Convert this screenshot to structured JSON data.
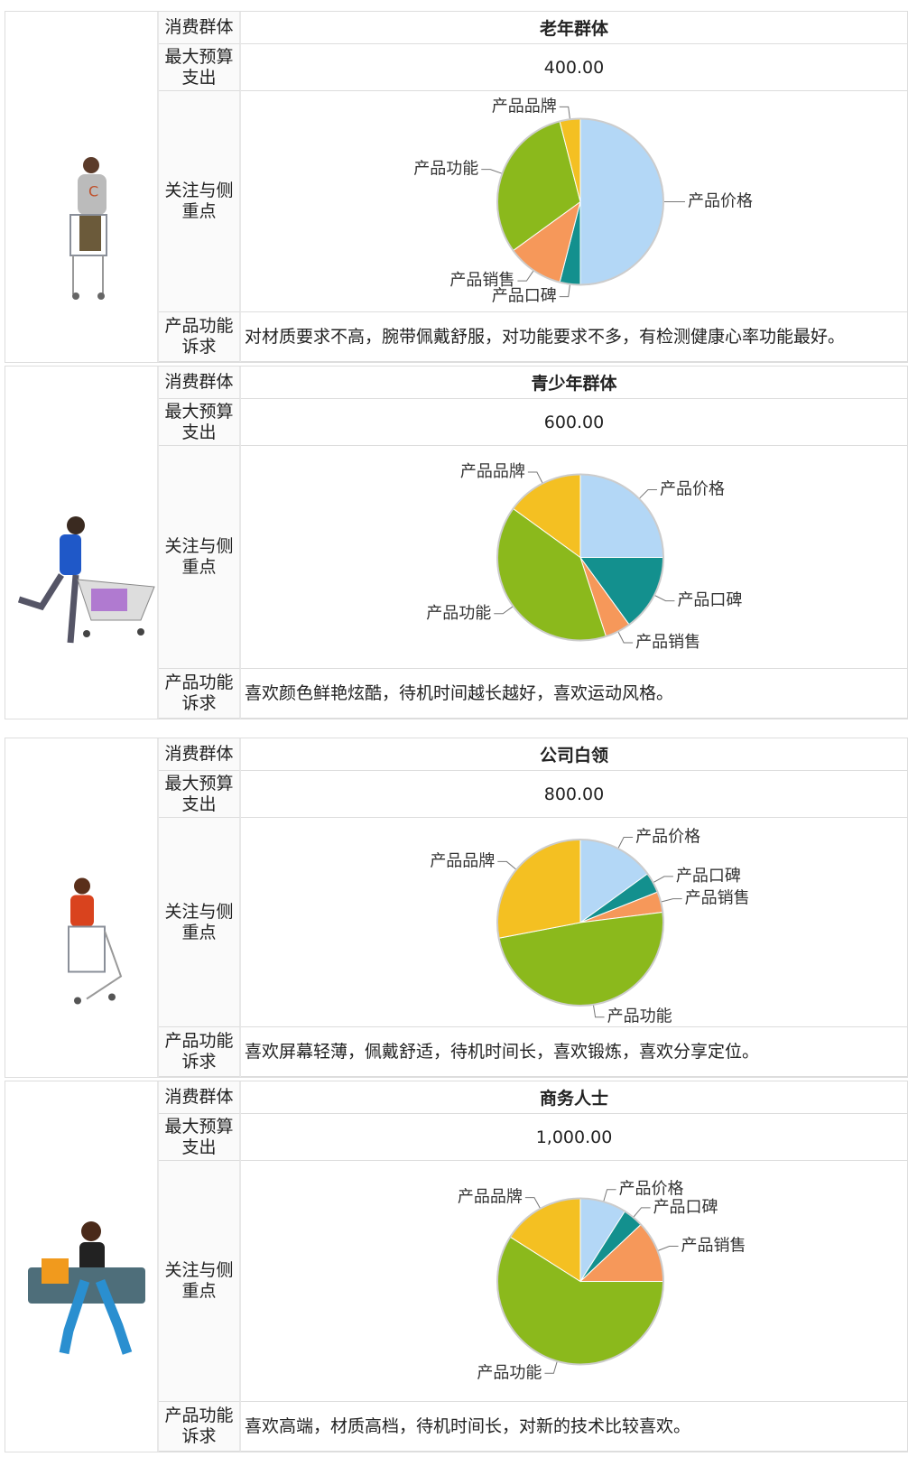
{
  "groups": [
    {
      "group_label": "消费群体",
      "group": "老年群体",
      "budget_label": "最大预算支出",
      "budget": "400.00",
      "focus_label": "关注与侧重点",
      "appeal_label": "产品功能诉求",
      "appeal": "对材质要求不高，腕带佩戴舒服，对功能要求不多，有检测健康心率功能最好。"
    },
    {
      "group_label": "消费群体",
      "group": "青少年群体",
      "budget_label": "最大预算支出",
      "budget": "600.00",
      "focus_label": "关注与侧重点",
      "appeal_label": "产品功能诉求",
      "appeal": "喜欢颜色鲜艳炫酷，待机时间越长越好，喜欢运动风格。"
    },
    {
      "group_label": "消费群体",
      "group": "公司白领",
      "budget_label": "最大预算支出",
      "budget": "800.00",
      "focus_label": "关注与侧重点",
      "appeal_label": "产品功能诉求",
      "appeal": "喜欢屏幕轻薄，佩戴舒适，待机时间长，喜欢锻炼，喜欢分享定位。"
    },
    {
      "group_label": "消费群体",
      "group": "商务人士",
      "budget_label": "最大预算支出",
      "budget": "1,000.00",
      "focus_label": "关注与侧重点",
      "appeal_label": "产品功能诉求",
      "appeal": "喜欢高端，材质高档，待机时间长，对新的技术比较喜欢。"
    }
  ],
  "chart_data": [
    {
      "type": "pie",
      "categories": [
        "产品价格",
        "产品口碑",
        "产品销售",
        "产品功能",
        "产品品牌"
      ],
      "values": [
        50,
        4,
        11,
        31,
        4
      ],
      "colors": [
        "#b3d7f6",
        "#13908e",
        "#f6985a",
        "#8bb91c",
        "#f4c022"
      ]
    },
    {
      "type": "pie",
      "categories": [
        "产品价格",
        "产品口碑",
        "产品销售",
        "产品功能",
        "产品品牌"
      ],
      "values": [
        25,
        15,
        5,
        40,
        15
      ],
      "colors": [
        "#b3d7f6",
        "#13908e",
        "#f6985a",
        "#8bb91c",
        "#f4c022"
      ]
    },
    {
      "type": "pie",
      "categories": [
        "产品价格",
        "产品口碑",
        "产品销售",
        "产品功能",
        "产品品牌"
      ],
      "values": [
        15,
        4,
        4,
        49,
        28
      ],
      "colors": [
        "#b3d7f6",
        "#13908e",
        "#f6985a",
        "#8bb91c",
        "#f4c022"
      ]
    },
    {
      "type": "pie",
      "categories": [
        "产品价格",
        "产品口碑",
        "产品销售",
        "产品功能",
        "产品品牌"
      ],
      "values": [
        9,
        4,
        12,
        59,
        16
      ],
      "colors": [
        "#b3d7f6",
        "#13908e",
        "#f6985a",
        "#8bb91c",
        "#f4c022"
      ]
    }
  ]
}
